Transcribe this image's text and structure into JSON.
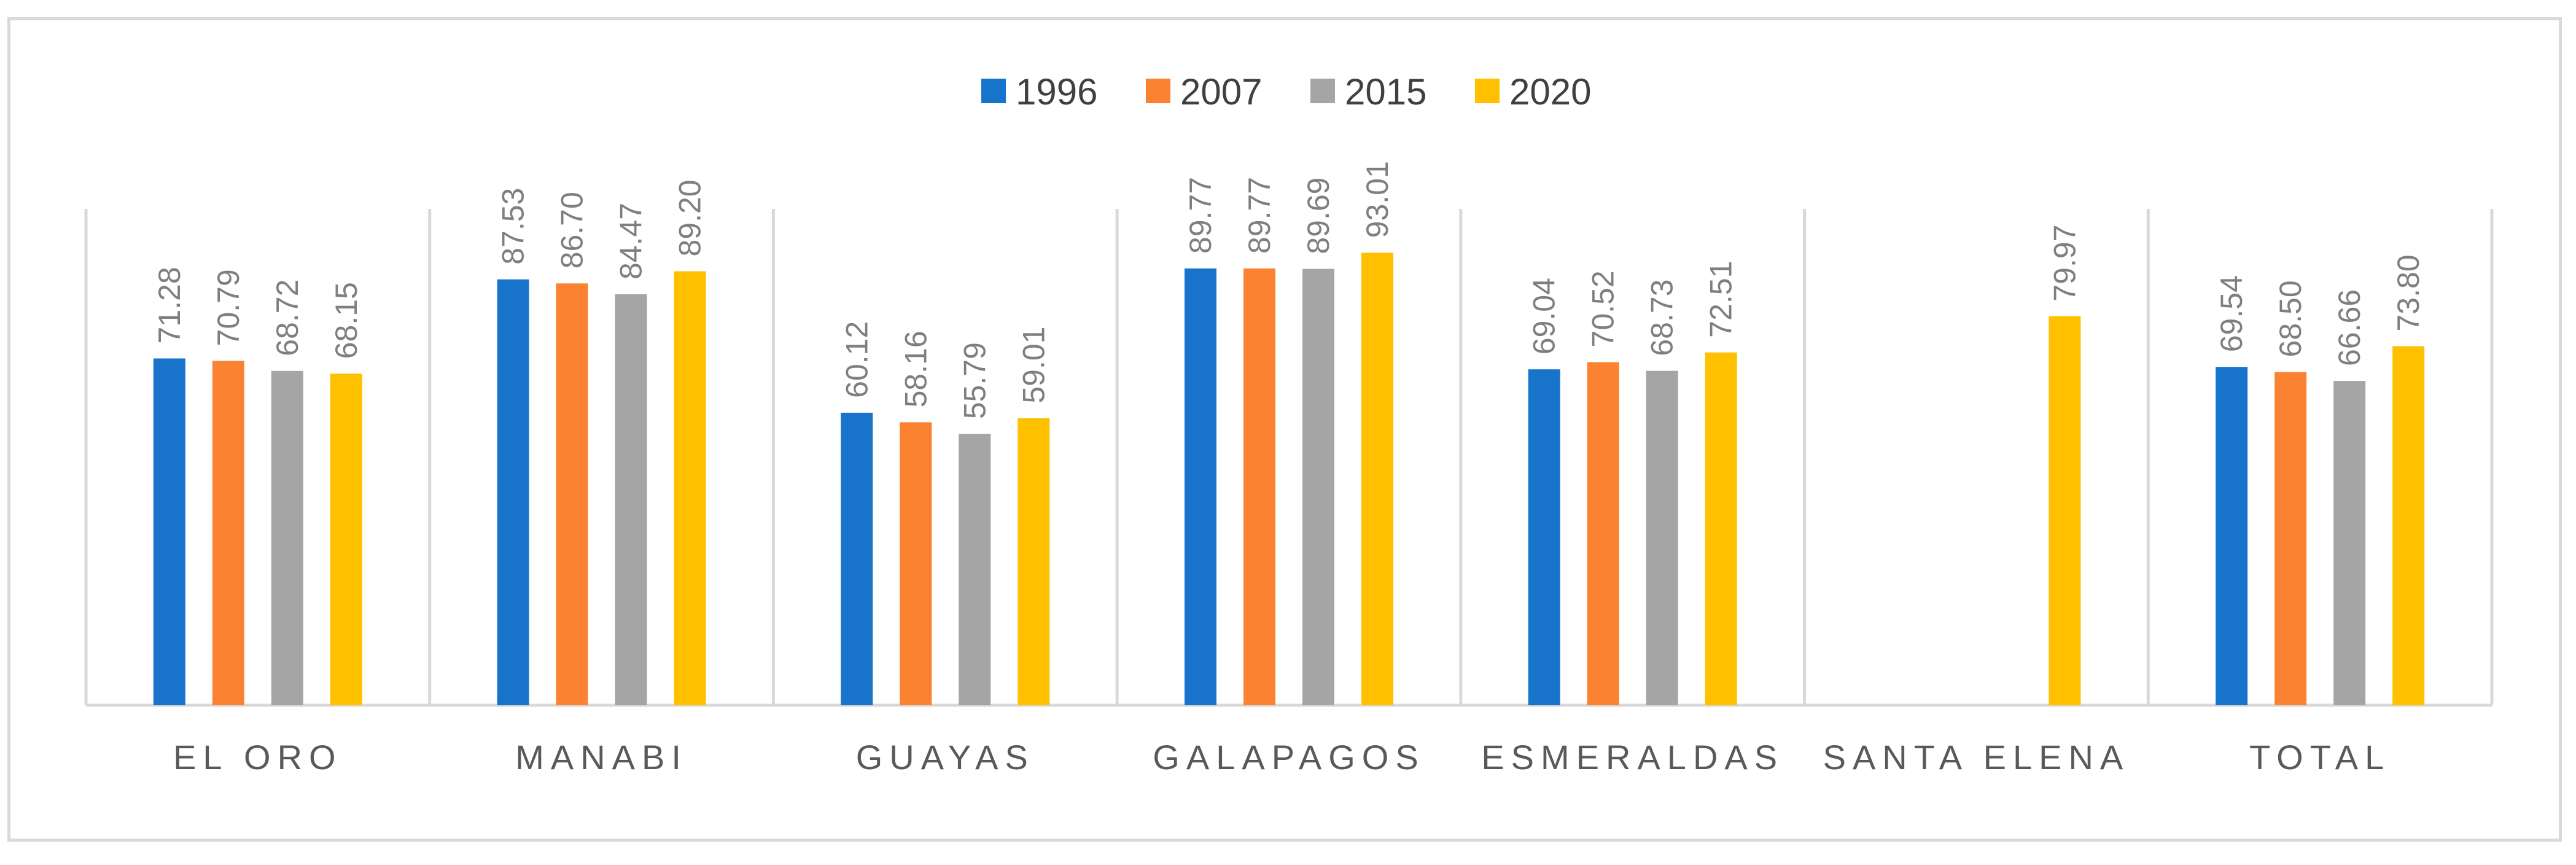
{
  "chart_data": {
    "type": "bar",
    "title": "",
    "xlabel": "",
    "ylabel": "",
    "ylim": [
      0,
      100
    ],
    "grid": false,
    "legend_position": "top",
    "categories": [
      "EL ORO",
      "MANABI",
      "GUAYAS",
      "GALAPAGOS",
      "ESMERALDAS",
      "SANTA ELENA",
      "TOTAL"
    ],
    "series": [
      {
        "name": "1996",
        "color": "#1873cb",
        "values": [
          71.28,
          87.53,
          60.12,
          89.77,
          69.04,
          null,
          69.54
        ],
        "labels": [
          "71.28",
          "87.53",
          "60.12",
          "89.77",
          "69.04",
          "",
          "69.54"
        ]
      },
      {
        "name": "2007",
        "color": "#fb8230",
        "values": [
          70.79,
          86.7,
          58.16,
          89.77,
          70.52,
          null,
          68.5
        ],
        "labels": [
          "70.79",
          "86.70",
          "58.16",
          "89.77",
          "70.52",
          "",
          "68.50"
        ]
      },
      {
        "name": "2015",
        "color": "#a5a5a5",
        "values": [
          68.72,
          84.47,
          55.79,
          89.69,
          68.73,
          null,
          66.66
        ],
        "labels": [
          "68.72",
          "84.47",
          "55.79",
          "89.69",
          "68.73",
          "",
          "66.66"
        ]
      },
      {
        "name": "2020",
        "color": "#ffc000",
        "values": [
          68.15,
          89.2,
          59.01,
          93.01,
          72.51,
          79.97,
          73.8
        ],
        "labels": [
          "68.15",
          "89.20",
          "59.01",
          "93.01",
          "72.51",
          "79.97",
          "73.80"
        ]
      }
    ]
  }
}
